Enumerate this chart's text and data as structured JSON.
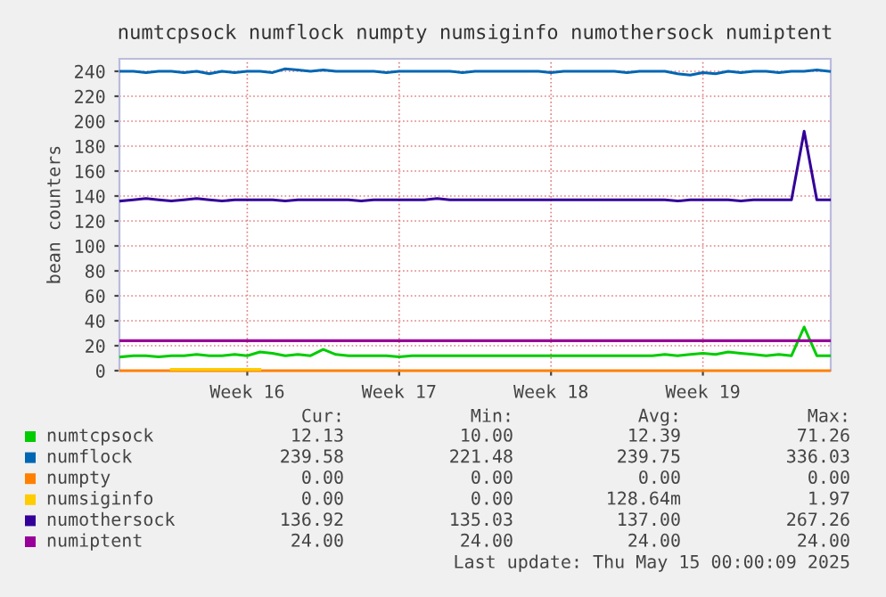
{
  "chart_data": {
    "type": "line",
    "title": "numtcpsock numflock numpty numsiginfo numothersock numiptent",
    "ylabel": "bean counters",
    "categories": [
      null,
      null,
      null,
      null,
      null,
      null,
      null,
      null,
      null,
      null,
      "Week 16",
      null,
      null,
      null,
      null,
      null,
      null,
      null,
      null,
      null,
      null,
      null,
      "Week 17",
      null,
      null,
      null,
      null,
      null,
      null,
      null,
      null,
      null,
      null,
      null,
      "Week 18",
      null,
      null,
      null,
      null,
      null,
      null,
      null,
      null,
      null,
      null,
      null,
      "Week 19",
      null,
      null,
      null,
      null,
      null,
      null,
      null,
      null,
      null,
      null
    ],
    "ylim": [
      0,
      250
    ],
    "yticks": [
      0,
      20,
      40,
      60,
      80,
      100,
      120,
      140,
      160,
      180,
      200,
      220,
      240
    ],
    "grid": true,
    "legend": "bottom",
    "series": [
      {
        "name": "numtcpsock",
        "color": "#00cc00",
        "values": [
          11,
          12,
          12,
          11,
          12,
          12,
          13,
          12,
          12,
          13,
          12,
          15,
          14,
          12,
          13,
          12,
          17,
          13,
          12,
          12,
          12,
          12,
          11,
          12,
          12,
          12,
          12,
          12,
          12,
          12,
          12,
          12,
          12,
          12,
          12,
          12,
          12,
          12,
          12,
          12,
          12,
          12,
          12,
          13,
          12,
          13,
          14,
          13,
          15,
          14,
          13,
          12,
          13,
          12,
          35,
          12,
          12
        ]
      },
      {
        "name": "numflock",
        "color": "#0066b3",
        "values": [
          240,
          240,
          239,
          240,
          240,
          239,
          240,
          238,
          240,
          239,
          240,
          240,
          239,
          242,
          241,
          240,
          241,
          240,
          240,
          240,
          240,
          239,
          240,
          240,
          240,
          240,
          240,
          239,
          240,
          240,
          240,
          240,
          240,
          240,
          239,
          240,
          240,
          240,
          240,
          240,
          239,
          240,
          240,
          240,
          238,
          237,
          239,
          238,
          240,
          239,
          240,
          240,
          239,
          240,
          240,
          241,
          240
        ]
      },
      {
        "name": "numpty",
        "color": "#ff8000",
        "values": [
          0,
          0,
          0,
          0,
          0,
          0,
          0,
          0,
          0,
          0,
          0,
          0,
          0,
          0,
          0,
          0,
          0,
          0,
          0,
          0,
          0,
          0,
          0,
          0,
          0,
          0,
          0,
          0,
          0,
          0,
          0,
          0,
          0,
          0,
          0,
          0,
          0,
          0,
          0,
          0,
          0,
          0,
          0,
          0,
          0,
          0,
          0,
          0,
          0,
          0,
          0,
          0,
          0,
          0,
          0,
          0,
          0
        ]
      },
      {
        "name": "numsiginfo",
        "color": "#ffcc00",
        "values": [
          null,
          null,
          null,
          null,
          1,
          1,
          1,
          1,
          1,
          1,
          1,
          1,
          null,
          null,
          null,
          null,
          null,
          null,
          null,
          null,
          null,
          null,
          null,
          null,
          null,
          null,
          null,
          null,
          null,
          null,
          null,
          null,
          null,
          null,
          null,
          null,
          null,
          null,
          null,
          null,
          null,
          null,
          null,
          null,
          null,
          null,
          null,
          null,
          null,
          null,
          null,
          null,
          null,
          null,
          null,
          null,
          null
        ]
      },
      {
        "name": "numothersock",
        "color": "#330099",
        "values": [
          136,
          137,
          138,
          137,
          136,
          137,
          138,
          137,
          136,
          137,
          137,
          137,
          137,
          136,
          137,
          137,
          137,
          137,
          137,
          136,
          137,
          137,
          137,
          137,
          137,
          138,
          137,
          137,
          137,
          137,
          137,
          137,
          137,
          137,
          137,
          137,
          137,
          137,
          137,
          137,
          137,
          137,
          137,
          137,
          136,
          137,
          137,
          137,
          137,
          136,
          137,
          137,
          137,
          137,
          192,
          137,
          137
        ]
      },
      {
        "name": "numiptent",
        "color": "#990099",
        "values": [
          24,
          24,
          24,
          24,
          24,
          24,
          24,
          24,
          24,
          24,
          24,
          24,
          24,
          24,
          24,
          24,
          24,
          24,
          24,
          24,
          24,
          24,
          24,
          24,
          24,
          24,
          24,
          24,
          24,
          24,
          24,
          24,
          24,
          24,
          24,
          24,
          24,
          24,
          24,
          24,
          24,
          24,
          24,
          24,
          24,
          24,
          24,
          24,
          24,
          24,
          24,
          24,
          24,
          24,
          24,
          24,
          24
        ]
      }
    ],
    "annotations": [
      "Cur:",
      "Min:",
      "Avg:",
      "Max:",
      "12.13",
      "10.00",
      "12.39",
      "71.26",
      "239.58",
      "221.48",
      "239.75",
      "336.03",
      "0.00",
      "0.00",
      "0.00",
      "0.00",
      "0.00",
      "0.00",
      "128.64m",
      "1.97",
      "136.92",
      "135.03",
      "137.00",
      "267.26",
      "24.00",
      "24.00",
      "24.00",
      "24.00",
      "Last update: Thu May 15 00:00:09 2025"
    ]
  }
}
